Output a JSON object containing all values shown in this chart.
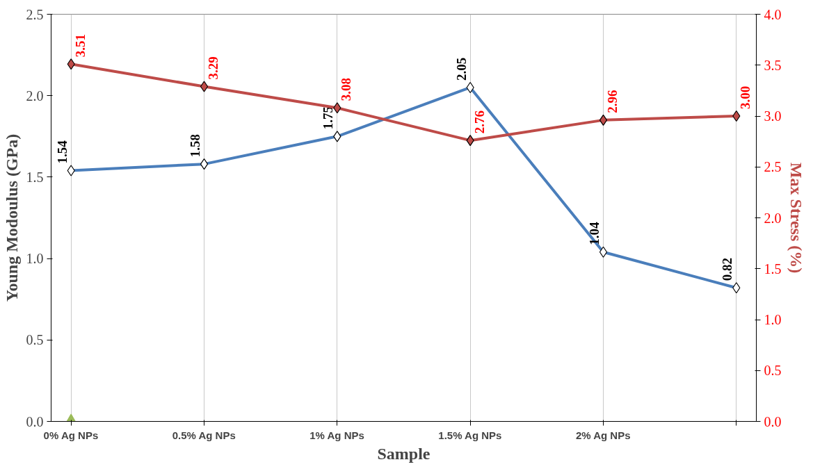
{
  "chart_data": {
    "type": "line",
    "categories": [
      "0% Ag NPs",
      "0.5% Ag NPs",
      "1% Ag NPs",
      "1.5% Ag NPs",
      "2% Ag NPs",
      null
    ],
    "xlabel": "Sample",
    "ylabel": "Young Modoulus (GPa)",
    "y2label": "Max Stress (%)",
    "series": [
      {
        "name": null,
        "color": "#4a7ebb",
        "marker": "diamond",
        "values": [
          1.54,
          1.58,
          1.75,
          2.05,
          1.04,
          0.82
        ],
        "value_labels": [
          "1.54",
          "1.58",
          "1.75",
          "2.05",
          "1.04",
          "0.82"
        ]
      },
      {
        "name": null,
        "axis": "y2",
        "color": "#be4b48",
        "marker": "diamond",
        "values": [
          3.51,
          3.29,
          3.08,
          2.76,
          2.96,
          3.0
        ],
        "value_labels": [
          "3.51",
          "3.29",
          "3.08",
          "2.76",
          "2.96",
          "3.00"
        ]
      },
      {
        "name": null,
        "type": "scatter",
        "color": "#9bbb59",
        "marker": "triangle",
        "values": [
          0,
          null,
          null,
          null,
          null,
          null
        ]
      }
    ],
    "ylim": [
      0,
      2.5
    ],
    "yticks": [
      {
        "value": 0,
        "label": "0.0"
      },
      {
        "value": 0.5,
        "label": "0.5"
      },
      {
        "value": 1,
        "label": "1.0"
      },
      {
        "value": 1.5,
        "label": "1.5"
      },
      {
        "value": 2,
        "label": "2.0"
      },
      {
        "value": 2.5,
        "label": "2.5"
      }
    ],
    "y2lim": [
      0,
      4
    ],
    "y2ticks": [
      {
        "value": 0,
        "label": "0.0"
      },
      {
        "value": 0.5,
        "label": "0.5"
      },
      {
        "value": 1,
        "label": "1.0"
      },
      {
        "value": 1.5,
        "label": "1.5"
      },
      {
        "value": 2,
        "label": "2.0"
      },
      {
        "value": 2.5,
        "label": "2.5"
      },
      {
        "value": 3,
        "label": "3.0"
      },
      {
        "value": 3.5,
        "label": "3.5"
      },
      {
        "value": 4,
        "label": "4.0"
      }
    ],
    "grid": "x"
  }
}
